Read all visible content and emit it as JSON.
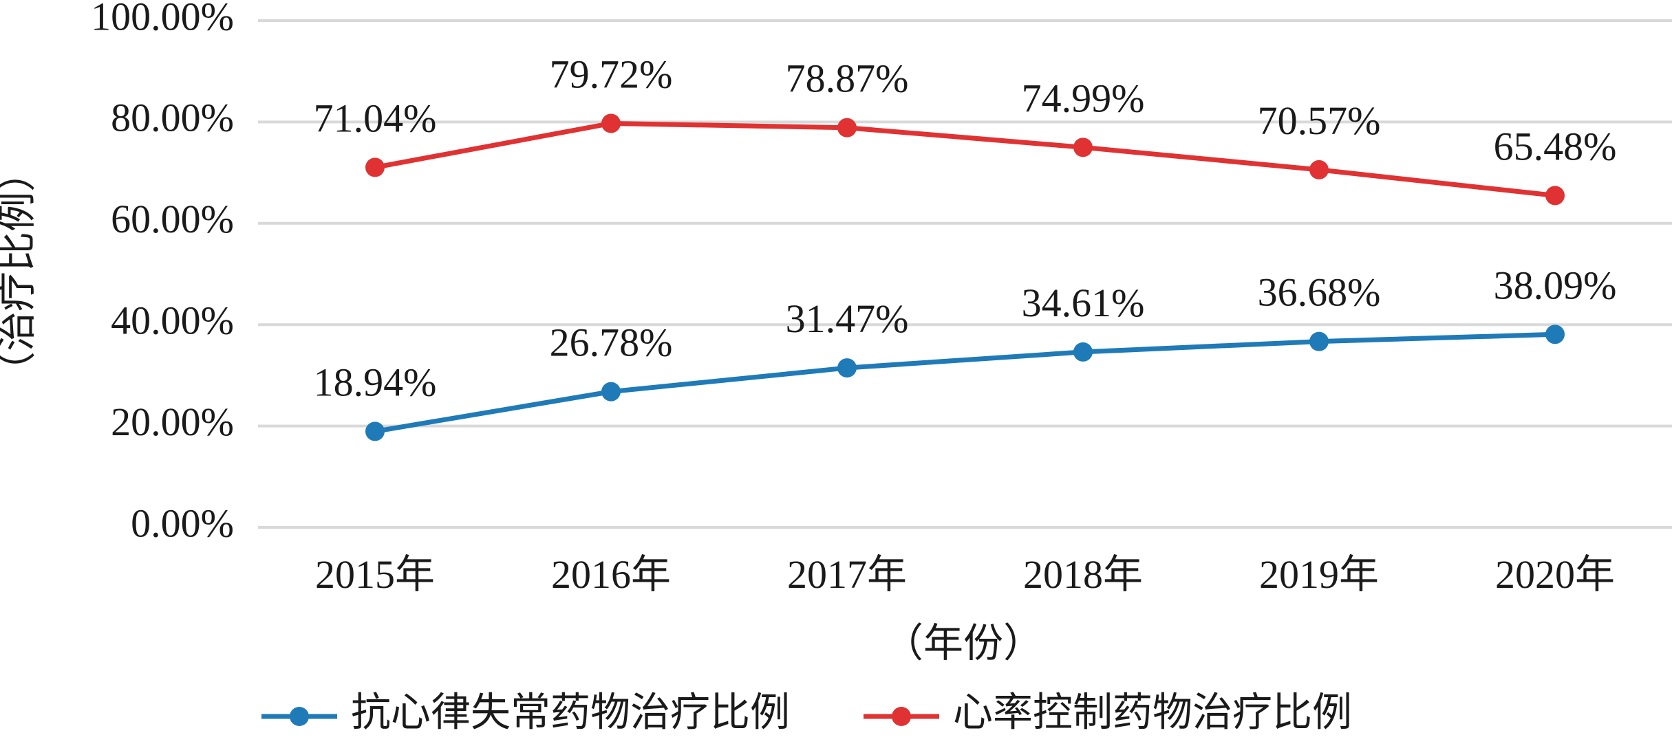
{
  "chart_data": {
    "type": "line",
    "categories": [
      "2015年",
      "2016年",
      "2017年",
      "2018年",
      "2019年",
      "2020年"
    ],
    "series": [
      {
        "name": "抗心律失常药物治疗比例",
        "values": [
          18.94,
          26.78,
          31.47,
          34.61,
          36.68,
          38.09
        ],
        "labels": [
          "18.94%",
          "26.78%",
          "31.47%",
          "34.61%",
          "36.68%",
          "38.09%"
        ],
        "color": "#1f7ab8"
      },
      {
        "name": "心率控制药物治疗比例",
        "values": [
          71.04,
          79.72,
          78.87,
          74.99,
          70.57,
          65.48
        ],
        "labels": [
          "71.04%",
          "79.72%",
          "78.87%",
          "74.99%",
          "70.57%",
          "65.48%"
        ],
        "color": "#e03232"
      }
    ],
    "xlabel": "（年份）",
    "ylabel": "（治疗比例）",
    "ylim": [
      0,
      100
    ],
    "yticks": [
      0,
      20,
      40,
      60,
      80,
      100
    ],
    "ytick_labels": [
      "0.00%",
      "20.00%",
      "40.00%",
      "60.00%",
      "80.00%",
      "100.00%"
    ],
    "grid": true,
    "legend_position": "bottom"
  }
}
